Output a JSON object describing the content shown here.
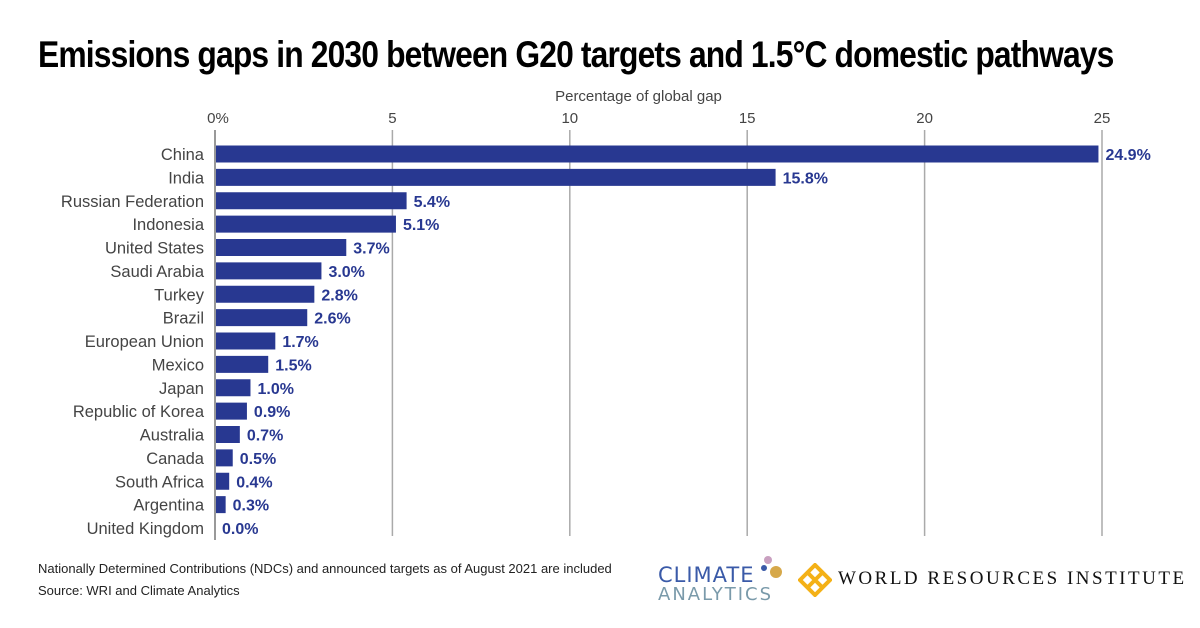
{
  "chart_data": {
    "type": "bar",
    "orientation": "horizontal",
    "title": "Emissions gaps in 2030 between G20 targets and 1.5°C domestic pathways",
    "xlabel": "Percentage of global gap",
    "xlim": [
      0,
      25
    ],
    "xticks": [
      0,
      5,
      10,
      15,
      20,
      25
    ],
    "xtick_labels": [
      "0%",
      "5",
      "10",
      "15",
      "20",
      "25"
    ],
    "grid": true,
    "categories": [
      "China",
      "India",
      "Russian Federation",
      "Indonesia",
      "United States",
      "Saudi Arabia",
      "Turkey",
      "Brazil",
      "European Union",
      "Mexico",
      "Japan",
      "Republic of Korea",
      "Australia",
      "Canada",
      "South Africa",
      "Argentina",
      "United Kingdom"
    ],
    "values": [
      24.9,
      15.8,
      5.4,
      5.1,
      3.7,
      3.0,
      2.8,
      2.6,
      1.7,
      1.5,
      1.0,
      0.9,
      0.7,
      0.5,
      0.4,
      0.3,
      0.0
    ],
    "data_labels": [
      "24.9%",
      "15.8%",
      "5.4%",
      "5.1%",
      "3.7%",
      "3.0%",
      "2.8%",
      "2.6%",
      "1.7%",
      "1.5%",
      "1.0%",
      "0.9%",
      "0.7%",
      "0.5%",
      "0.4%",
      "0.3%",
      "0.0%"
    ],
    "bar_color": "#283891"
  },
  "footer": {
    "note": "Nationally Determined Contributions (NDCs) and announced targets as of August 2021 are included",
    "source": "Source: WRI and Climate Analytics"
  },
  "logos": {
    "climate_analytics_1": "CLIMATE",
    "climate_analytics_2": "ANALYTICS",
    "wri": "WORLD RESOURCES INSTITUTE"
  }
}
